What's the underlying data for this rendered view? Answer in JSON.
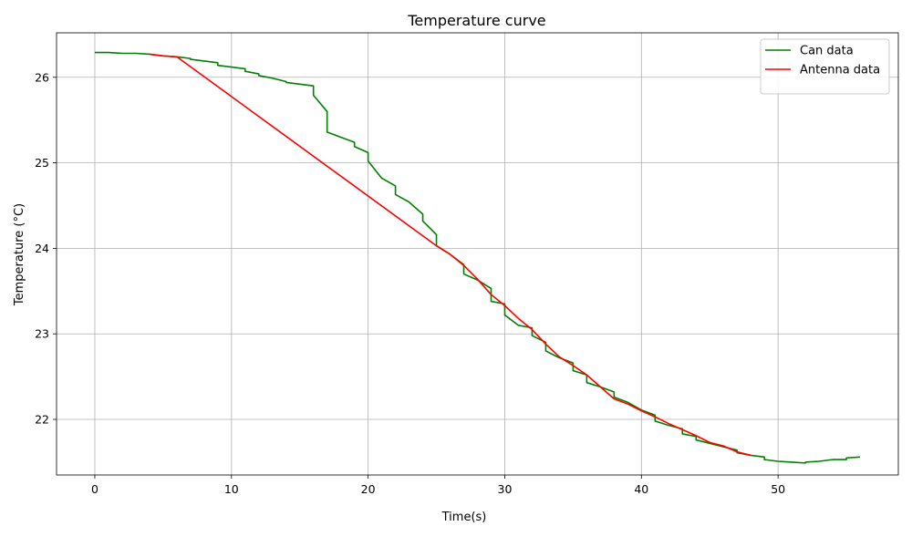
{
  "chart_data": {
    "type": "line",
    "title": "Temperature curve",
    "xlabel": "Time(s)",
    "ylabel": "Temperature (°C)",
    "xlim": [
      -2.8,
      58.8
    ],
    "ylim": [
      21.35,
      26.52
    ],
    "xticks": [
      0,
      10,
      20,
      30,
      40,
      50
    ],
    "yticks": [
      22,
      23,
      24,
      25,
      26
    ],
    "grid": true,
    "legend_position": "top-right",
    "series": [
      {
        "name": "Can data",
        "color": "#008000",
        "x": [
          0,
          1,
          2,
          3,
          4,
          5,
          6,
          7,
          7,
          8,
          9,
          9,
          10,
          11,
          11,
          12,
          12,
          13,
          14,
          14,
          15,
          16,
          16,
          17,
          17,
          18,
          19,
          19,
          20,
          20,
          21,
          22,
          22,
          23,
          24,
          24,
          25,
          25,
          26,
          27,
          27,
          28,
          29,
          29,
          30,
          30,
          31,
          32,
          32,
          33,
          33,
          34,
          35,
          35,
          36,
          36,
          37,
          38,
          38,
          39,
          40,
          41,
          41,
          42,
          43,
          43,
          44,
          44,
          45,
          46,
          47,
          47,
          48,
          49,
          49,
          50,
          51,
          52,
          52,
          53,
          54,
          55,
          55,
          56
        ],
        "y": [
          26.29,
          26.29,
          26.28,
          26.28,
          26.27,
          26.25,
          26.24,
          26.22,
          26.21,
          26.19,
          26.17,
          26.14,
          26.12,
          26.1,
          26.07,
          26.04,
          26.02,
          25.99,
          25.95,
          25.94,
          25.92,
          25.9,
          25.79,
          25.6,
          25.36,
          25.3,
          25.24,
          25.19,
          25.12,
          25.02,
          24.82,
          24.73,
          24.63,
          24.54,
          24.4,
          24.32,
          24.16,
          24.03,
          23.93,
          23.81,
          23.7,
          23.63,
          23.53,
          23.38,
          23.35,
          23.22,
          23.1,
          23.07,
          22.98,
          22.9,
          22.8,
          22.72,
          22.66,
          22.57,
          22.52,
          22.43,
          22.38,
          22.32,
          22.26,
          22.2,
          22.11,
          22.05,
          21.98,
          21.93,
          21.89,
          21.83,
          21.8,
          21.76,
          21.72,
          21.68,
          21.64,
          21.61,
          21.58,
          21.56,
          21.53,
          21.51,
          21.5,
          21.49,
          21.5,
          21.51,
          21.53,
          21.53,
          21.55,
          21.56
        ]
      },
      {
        "name": "Antenna data",
        "color": "#ff0000",
        "x": [
          4,
          5,
          6,
          25,
          26,
          27,
          28,
          29,
          30,
          31,
          32,
          33,
          34,
          35,
          36,
          37,
          38,
          39,
          40,
          41,
          42,
          43,
          44,
          45,
          46,
          47,
          48
        ],
        "y": [
          26.27,
          26.25,
          26.24,
          24.03,
          23.93,
          23.8,
          23.64,
          23.46,
          23.33,
          23.18,
          23.05,
          22.88,
          22.73,
          22.63,
          22.52,
          22.38,
          22.24,
          22.18,
          22.1,
          22.03,
          21.95,
          21.88,
          21.81,
          21.73,
          21.69,
          21.62,
          21.58
        ]
      }
    ]
  }
}
